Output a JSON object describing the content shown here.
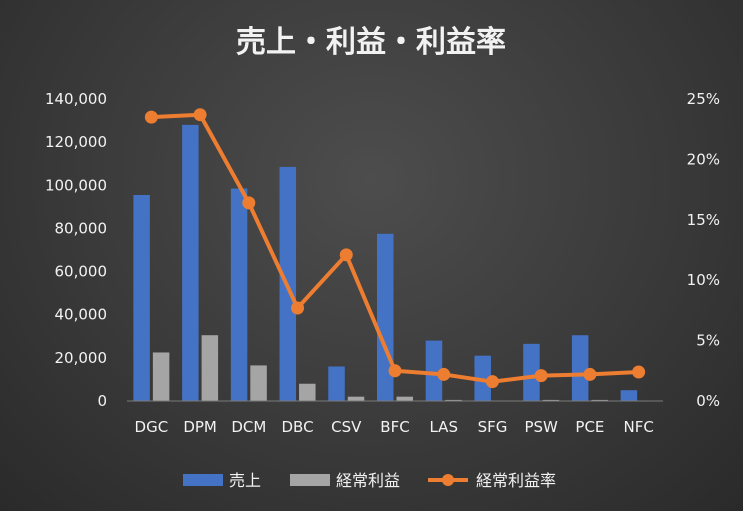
{
  "chart_data": {
    "type": "bar",
    "title": "売上・利益・利益率",
    "categories": [
      "DGC",
      "DPM",
      "DCM",
      "DBC",
      "CSV",
      "BFC",
      "LAS",
      "SFG",
      "PSW",
      "PCE",
      "NFC"
    ],
    "series": [
      {
        "name": "売上",
        "kind": "bar",
        "axis": "left",
        "color": "#4472C4",
        "values": [
          95500,
          128000,
          98500,
          108500,
          16000,
          77500,
          28000,
          21000,
          26500,
          30500,
          5000
        ]
      },
      {
        "name": "経常利益",
        "kind": "bar",
        "axis": "left",
        "color": "#A5A5A5",
        "values": [
          22500,
          30500,
          16500,
          8000,
          2000,
          2000,
          500,
          200,
          500,
          500,
          150
        ]
      },
      {
        "name": "経常利益率",
        "kind": "line",
        "axis": "right",
        "color": "#ED7D31",
        "values": [
          0.235,
          0.237,
          0.164,
          0.077,
          0.121,
          0.025,
          0.022,
          0.016,
          0.021,
          0.022,
          0.024
        ]
      }
    ],
    "y_left": {
      "min": 0,
      "max": 140000,
      "step": 20000,
      "tick_labels": [
        "0",
        "20,000",
        "40,000",
        "60,000",
        "80,000",
        "100,000",
        "120,000",
        "140,000"
      ]
    },
    "y_right": {
      "min": 0,
      "max": 0.25,
      "step": 0.05,
      "tick_labels": [
        "0%",
        "5%",
        "10%",
        "15%",
        "20%",
        "25%"
      ]
    },
    "grid": false,
    "legend_position": "bottom"
  }
}
